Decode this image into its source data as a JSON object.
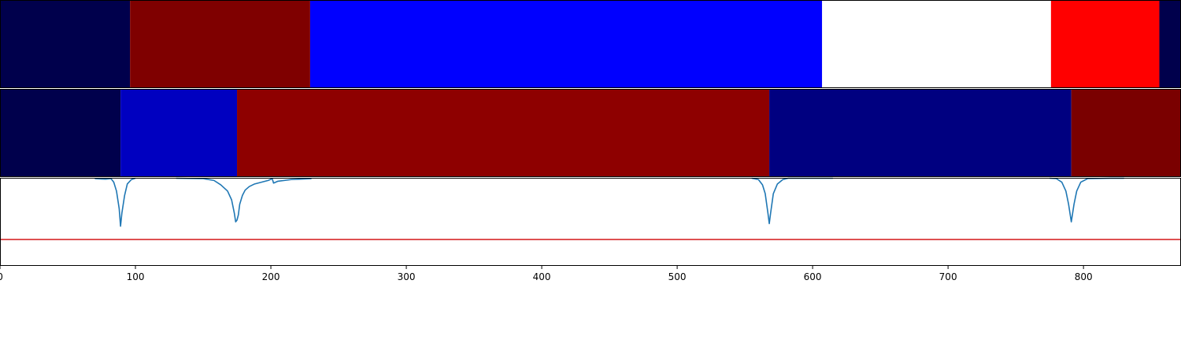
{
  "chart_data": {
    "type": "segmentation-timeline",
    "x_range": [
      0,
      872
    ],
    "x_ticks": [
      0,
      100,
      200,
      300,
      400,
      500,
      600,
      700,
      800
    ],
    "tracks": [
      {
        "segments": [
          {
            "start": 0,
            "end": 96,
            "color": "#00004c"
          },
          {
            "start": 96,
            "end": 229,
            "color": "#7f0000"
          },
          {
            "start": 229,
            "end": 607,
            "color": "#0000ff"
          },
          {
            "start": 607,
            "end": 776,
            "color": "#ffffff"
          },
          {
            "start": 776,
            "end": 856,
            "color": "#ff0000"
          },
          {
            "start": 856,
            "end": 872,
            "color": "#00004c"
          }
        ]
      },
      {
        "segments": [
          {
            "start": 0,
            "end": 89,
            "color": "#00004c"
          },
          {
            "start": 89,
            "end": 175,
            "color": "#0000c0"
          },
          {
            "start": 175,
            "end": 568,
            "color": "#8e0000"
          },
          {
            "start": 568,
            "end": 791,
            "color": "#000080"
          },
          {
            "start": 791,
            "end": 872,
            "color": "#7a0000"
          }
        ]
      }
    ],
    "novelty_curve": {
      "color": "#1f77b4",
      "y_range": [
        0,
        1
      ],
      "points": [
        [
          40,
          0.99
        ],
        [
          70,
          0.99
        ],
        [
          78,
          0.985
        ],
        [
          82,
          0.99
        ],
        [
          84,
          0.95
        ],
        [
          86,
          0.85
        ],
        [
          88,
          0.65
        ],
        [
          89,
          0.45
        ],
        [
          90,
          0.6
        ],
        [
          92,
          0.8
        ],
        [
          94,
          0.93
        ],
        [
          97,
          0.98
        ],
        [
          100,
          0.995
        ],
        [
          130,
          0.995
        ],
        [
          150,
          0.99
        ],
        [
          158,
          0.97
        ],
        [
          163,
          0.92
        ],
        [
          168,
          0.85
        ],
        [
          171,
          0.75
        ],
        [
          173,
          0.6
        ],
        [
          174,
          0.5
        ],
        [
          175,
          0.52
        ],
        [
          176,
          0.58
        ],
        [
          177,
          0.7
        ],
        [
          179,
          0.8
        ],
        [
          181,
          0.86
        ],
        [
          184,
          0.9
        ],
        [
          188,
          0.93
        ],
        [
          193,
          0.95
        ],
        [
          198,
          0.97
        ],
        [
          201,
          0.99
        ],
        [
          202,
          0.94
        ],
        [
          205,
          0.96
        ],
        [
          215,
          0.98
        ],
        [
          230,
          0.99
        ],
        [
          265,
          0.995
        ],
        [
          555,
          0.995
        ],
        [
          560,
          0.98
        ],
        [
          563,
          0.92
        ],
        [
          565,
          0.82
        ],
        [
          567,
          0.6
        ],
        [
          568,
          0.48
        ],
        [
          569,
          0.6
        ],
        [
          571,
          0.82
        ],
        [
          574,
          0.93
        ],
        [
          578,
          0.98
        ],
        [
          582,
          0.995
        ],
        [
          600,
          0.995
        ],
        [
          615,
          0.995
        ],
        [
          740,
          0.995
        ],
        [
          775,
          0.995
        ],
        [
          780,
          0.99
        ],
        [
          784,
          0.95
        ],
        [
          787,
          0.85
        ],
        [
          789,
          0.7
        ],
        [
          791,
          0.5
        ],
        [
          793,
          0.7
        ],
        [
          795,
          0.85
        ],
        [
          798,
          0.95
        ],
        [
          803,
          0.99
        ],
        [
          820,
          0.995
        ],
        [
          830,
          0.995
        ]
      ]
    },
    "threshold": {
      "value": 0.3,
      "color": "#d62728"
    }
  }
}
